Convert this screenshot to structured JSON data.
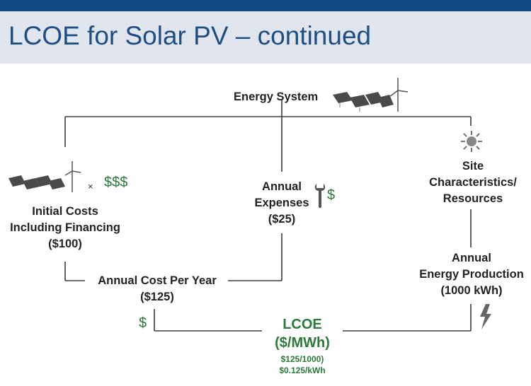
{
  "slide": {
    "title": "LCOE for Solar PV – continued"
  },
  "diagram": {
    "energy_system": "Energy System",
    "initial_costs": [
      "Initial Costs",
      "Including Financing",
      "($100)"
    ],
    "multiplier": "×",
    "money": "$$$",
    "annual_expenses": [
      "Annual",
      "Expenses",
      "($25)"
    ],
    "expenses_dollar": "$",
    "site": [
      "Site",
      "Characteristics/",
      "Resources"
    ],
    "annual_cost": [
      "Annual Cost Per Year",
      "($125)"
    ],
    "cost_dollar": "$",
    "energy_production": [
      "Annual",
      "Energy Production",
      "(1000 kWh)"
    ],
    "lcoe": [
      "LCOE",
      "($/MWh)"
    ],
    "lcoe_calc": [
      "$125/1000)",
      "$0.125/kWh"
    ]
  },
  "colors": {
    "accent": "#2b7a3a",
    "title": "#1f4f82",
    "topbar": "#0e4a80",
    "line": "#3a3a3a"
  },
  "icons": [
    "solar-panel-icon",
    "wind-turbine-icon",
    "sun-icon",
    "wrench-icon",
    "lightning-bolt-icon"
  ]
}
